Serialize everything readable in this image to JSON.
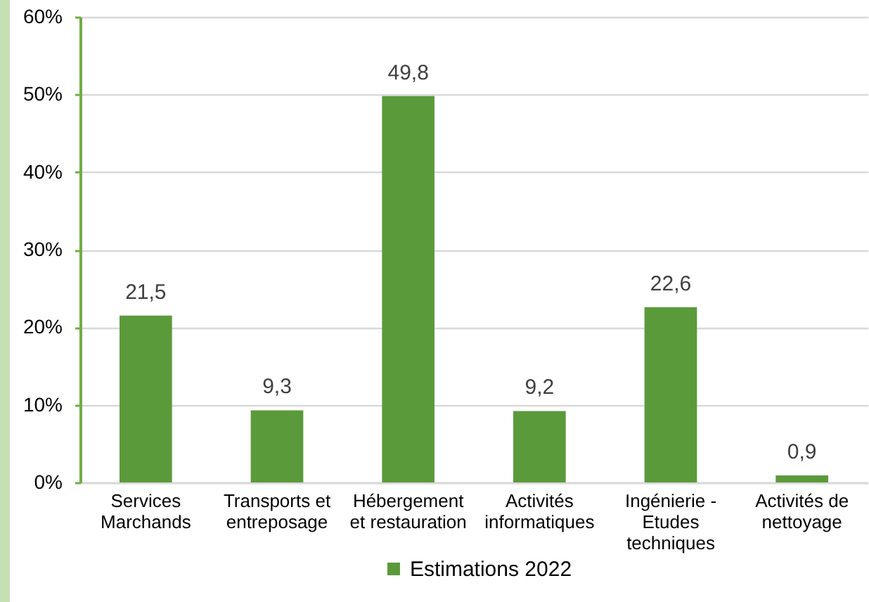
{
  "chart_data": {
    "type": "bar",
    "categories": [
      "Services Marchands",
      "Transports et entreposage",
      "Hébergement et restauration",
      "Activités informatiques",
      "Ingénierie - Etudes techniques",
      "Activités de nettoyage"
    ],
    "series": [
      {
        "name": "Estimations 2022",
        "color": "#5b9a3b",
        "values": [
          21.5,
          9.3,
          49.8,
          9.2,
          22.6,
          0.9
        ],
        "value_labels": [
          "21,5",
          "9,3",
          "49,8",
          "9,2",
          "22,6",
          "0,9"
        ]
      }
    ],
    "ylim": [
      0,
      60
    ],
    "yticks": [
      {
        "value": 0,
        "label": "0%"
      },
      {
        "value": 10,
        "label": "10%"
      },
      {
        "value": 20,
        "label": "20%"
      },
      {
        "value": 30,
        "label": "30%"
      },
      {
        "value": 40,
        "label": "40%"
      },
      {
        "value": 50,
        "label": "50%"
      },
      {
        "value": 60,
        "label": "60%"
      }
    ],
    "grid": "y",
    "legend": "bottom"
  }
}
